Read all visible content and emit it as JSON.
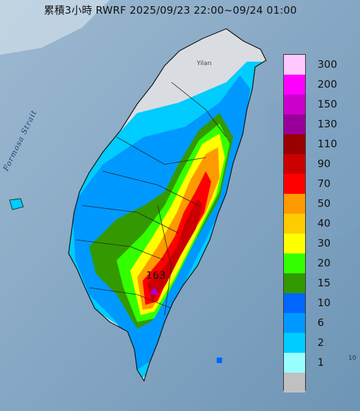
{
  "title": "累積3小時 RWRF 2025/09/23 22:00~09/24 01:00",
  "sea_label": "Formosa Strait",
  "place_label": "Yilan",
  "max_value": "163",
  "legend": {
    "levels": [
      {
        "label": "300",
        "color": "#ffc9ff"
      },
      {
        "label": "200",
        "color": "#ff00ff"
      },
      {
        "label": "150",
        "color": "#cc00cc"
      },
      {
        "label": "130",
        "color": "#990099"
      },
      {
        "label": "110",
        "color": "#990000"
      },
      {
        "label": "90",
        "color": "#cc0000"
      },
      {
        "label": "70",
        "color": "#ff0000"
      },
      {
        "label": "50",
        "color": "#ff9900"
      },
      {
        "label": "40",
        "color": "#ffcc00"
      },
      {
        "label": "30",
        "color": "#ffff00"
      },
      {
        "label": "20",
        "color": "#33ff00"
      },
      {
        "label": "15",
        "color": "#339900"
      },
      {
        "label": "10",
        "color": "#0066ff"
      },
      {
        "label": "6",
        "color": "#0099ff"
      },
      {
        "label": "2",
        "color": "#00ccff"
      },
      {
        "label": "1",
        "color": "#99ffff"
      },
      {
        "label": "",
        "color": "#c0c0c0"
      }
    ]
  },
  "edge_label": "10"
}
